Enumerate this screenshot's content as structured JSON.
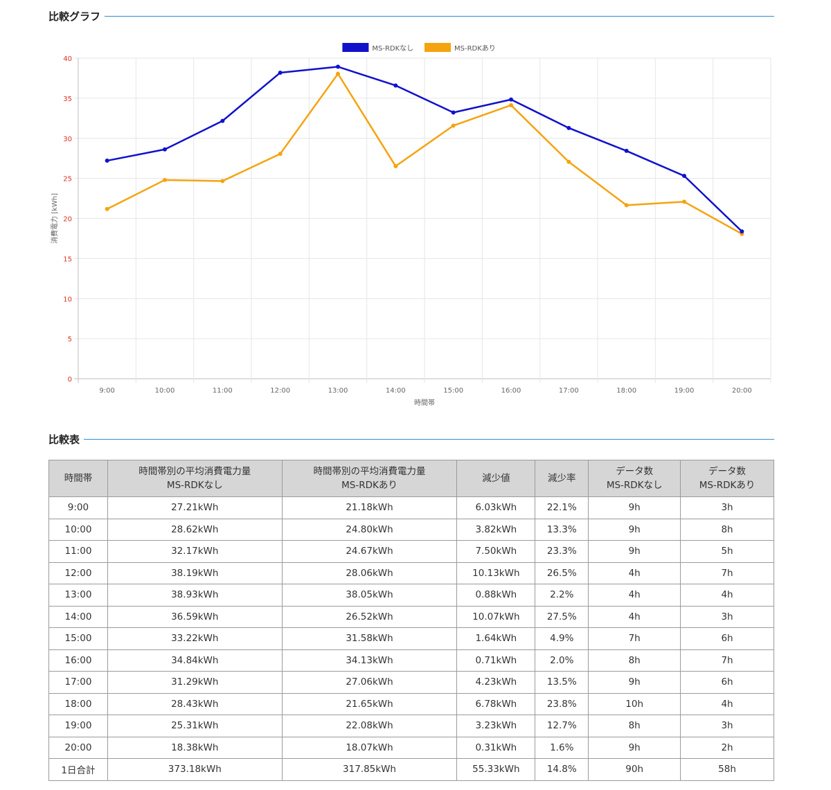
{
  "graph_section": {
    "title": "比較グラフ"
  },
  "table_section": {
    "title": "比較表"
  },
  "chart_data": {
    "type": "line",
    "categories": [
      "9:00",
      "10:00",
      "11:00",
      "12:00",
      "13:00",
      "14:00",
      "15:00",
      "16:00",
      "17:00",
      "18:00",
      "19:00",
      "20:00"
    ],
    "series": [
      {
        "name": "MS-RDKなし",
        "color": "#1111cc",
        "values": [
          27.21,
          28.62,
          32.17,
          38.19,
          38.93,
          36.59,
          33.22,
          34.84,
          31.29,
          28.43,
          25.31,
          18.38
        ]
      },
      {
        "name": "MS-RDKあり",
        "color": "#f5a30f",
        "values": [
          21.18,
          24.8,
          24.67,
          28.06,
          38.05,
          26.52,
          31.58,
          34.13,
          27.06,
          21.65,
          22.08,
          18.07
        ]
      }
    ],
    "xlabel": "時間帯",
    "ylabel": "消費電力 [kWh]",
    "ylim": [
      0,
      40
    ],
    "yticks": [
      0,
      5,
      10,
      15,
      20,
      25,
      30,
      35,
      40
    ],
    "ytick_color": "#e0301e",
    "grid": true,
    "legend": "top-center"
  },
  "table": {
    "headers": [
      [
        "時間帯"
      ],
      [
        "時間帯別の平均消費電力量",
        "MS-RDKなし"
      ],
      [
        "時間帯別の平均消費電力量",
        "MS-RDKあり"
      ],
      [
        "減少値"
      ],
      [
        "減少率"
      ],
      [
        "データ数",
        "MS-RDKなし"
      ],
      [
        "データ数",
        "MS-RDKあり"
      ]
    ],
    "rows": [
      [
        "9:00",
        "27.21kWh",
        "21.18kWh",
        "6.03kWh",
        "22.1%",
        "9h",
        "3h"
      ],
      [
        "10:00",
        "28.62kWh",
        "24.80kWh",
        "3.82kWh",
        "13.3%",
        "9h",
        "8h"
      ],
      [
        "11:00",
        "32.17kWh",
        "24.67kWh",
        "7.50kWh",
        "23.3%",
        "9h",
        "5h"
      ],
      [
        "12:00",
        "38.19kWh",
        "28.06kWh",
        "10.13kWh",
        "26.5%",
        "4h",
        "7h"
      ],
      [
        "13:00",
        "38.93kWh",
        "38.05kWh",
        "0.88kWh",
        "2.2%",
        "4h",
        "4h"
      ],
      [
        "14:00",
        "36.59kWh",
        "26.52kWh",
        "10.07kWh",
        "27.5%",
        "4h",
        "3h"
      ],
      [
        "15:00",
        "33.22kWh",
        "31.58kWh",
        "1.64kWh",
        "4.9%",
        "7h",
        "6h"
      ],
      [
        "16:00",
        "34.84kWh",
        "34.13kWh",
        "0.71kWh",
        "2.0%",
        "8h",
        "7h"
      ],
      [
        "17:00",
        "31.29kWh",
        "27.06kWh",
        "4.23kWh",
        "13.5%",
        "9h",
        "6h"
      ],
      [
        "18:00",
        "28.43kWh",
        "21.65kWh",
        "6.78kWh",
        "23.8%",
        "10h",
        "4h"
      ],
      [
        "19:00",
        "25.31kWh",
        "22.08kWh",
        "3.23kWh",
        "12.7%",
        "8h",
        "3h"
      ],
      [
        "20:00",
        "18.38kWh",
        "18.07kWh",
        "0.31kWh",
        "1.6%",
        "9h",
        "2h"
      ],
      [
        "1日合計",
        "373.18kWh",
        "317.85kWh",
        "55.33kWh",
        "14.8%",
        "90h",
        "58h"
      ]
    ]
  }
}
